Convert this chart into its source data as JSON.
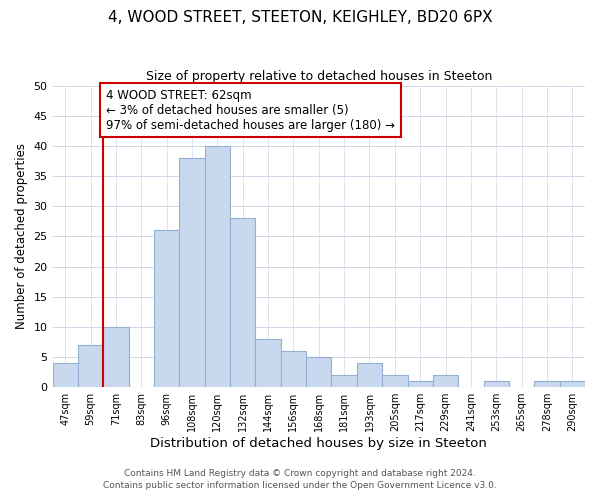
{
  "title": "4, WOOD STREET, STEETON, KEIGHLEY, BD20 6PX",
  "subtitle": "Size of property relative to detached houses in Steeton",
  "xlabel": "Distribution of detached houses by size in Steeton",
  "ylabel": "Number of detached properties",
  "bar_labels": [
    "47sqm",
    "59sqm",
    "71sqm",
    "83sqm",
    "96sqm",
    "108sqm",
    "120sqm",
    "132sqm",
    "144sqm",
    "156sqm",
    "168sqm",
    "181sqm",
    "193sqm",
    "205sqm",
    "217sqm",
    "229sqm",
    "241sqm",
    "253sqm",
    "265sqm",
    "278sqm",
    "290sqm"
  ],
  "bar_values": [
    4,
    7,
    10,
    0,
    26,
    38,
    40,
    28,
    8,
    6,
    5,
    2,
    4,
    2,
    1,
    2,
    0,
    1,
    0,
    1,
    1
  ],
  "bar_color": "#c8d8ee",
  "bar_edge_color": "#93afd4",
  "vline_x": 1.5,
  "vline_color": "#cc0000",
  "annotation_line1": "4 WOOD STREET: 62sqm",
  "annotation_line2": "← 3% of detached houses are smaller (5)",
  "annotation_line3": "97% of semi-detached houses are larger (180) →",
  "annotation_box_edge": "#cc0000",
  "annotation_fontsize": 8.5,
  "ylim": [
    0,
    50
  ],
  "yticks": [
    0,
    5,
    10,
    15,
    20,
    25,
    30,
    35,
    40,
    45,
    50
  ],
  "footnote1": "Contains HM Land Registry data © Crown copyright and database right 2024.",
  "footnote2": "Contains public sector information licensed under the Open Government Licence v3.0.",
  "bg_color": "#ffffff",
  "grid_color": "#d0d8e8",
  "title_fontsize": 11,
  "subtitle_fontsize": 9,
  "xlabel_fontsize": 9.5,
  "ylabel_fontsize": 8.5,
  "footnote_fontsize": 6.5
}
